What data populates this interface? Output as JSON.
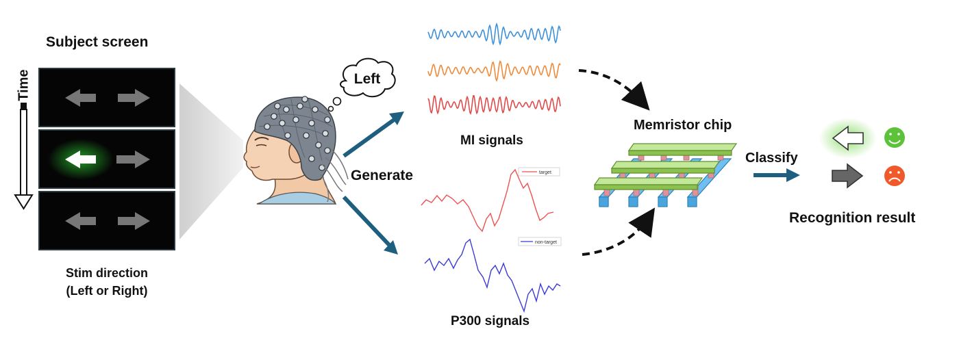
{
  "subject_screen": {
    "title": "Subject screen",
    "time_label": "Time",
    "caption_line1": "Stim direction",
    "caption_line2": "(Left or Right)"
  },
  "thought_bubble": {
    "text": "Left"
  },
  "flow": {
    "generate_label": "Generate",
    "classify_label": "Classify"
  },
  "mi": {
    "label": "MI signals",
    "colors": [
      "#3d8fd9",
      "#ef8a3a",
      "#e04a4a"
    ]
  },
  "p300": {
    "label": "P300 signals",
    "legend_target": "target",
    "legend_nontarget": "non-target",
    "target_color": "#ee5050",
    "nontarget_color": "#3a3ad6"
  },
  "chip": {
    "label": "Memristor chip",
    "top_bar_color": "#a6d86f",
    "bottom_bar_color": "#6fc0f0",
    "pillar_color": "#e0929a"
  },
  "result": {
    "label": "Recognition result",
    "happy_color": "#5cc23a",
    "sad_color": "#f05a2a"
  },
  "colors": {
    "flow_arrow": "#1e5f80",
    "screen_bg": "#050505",
    "stim_glow": "#2cd032"
  }
}
